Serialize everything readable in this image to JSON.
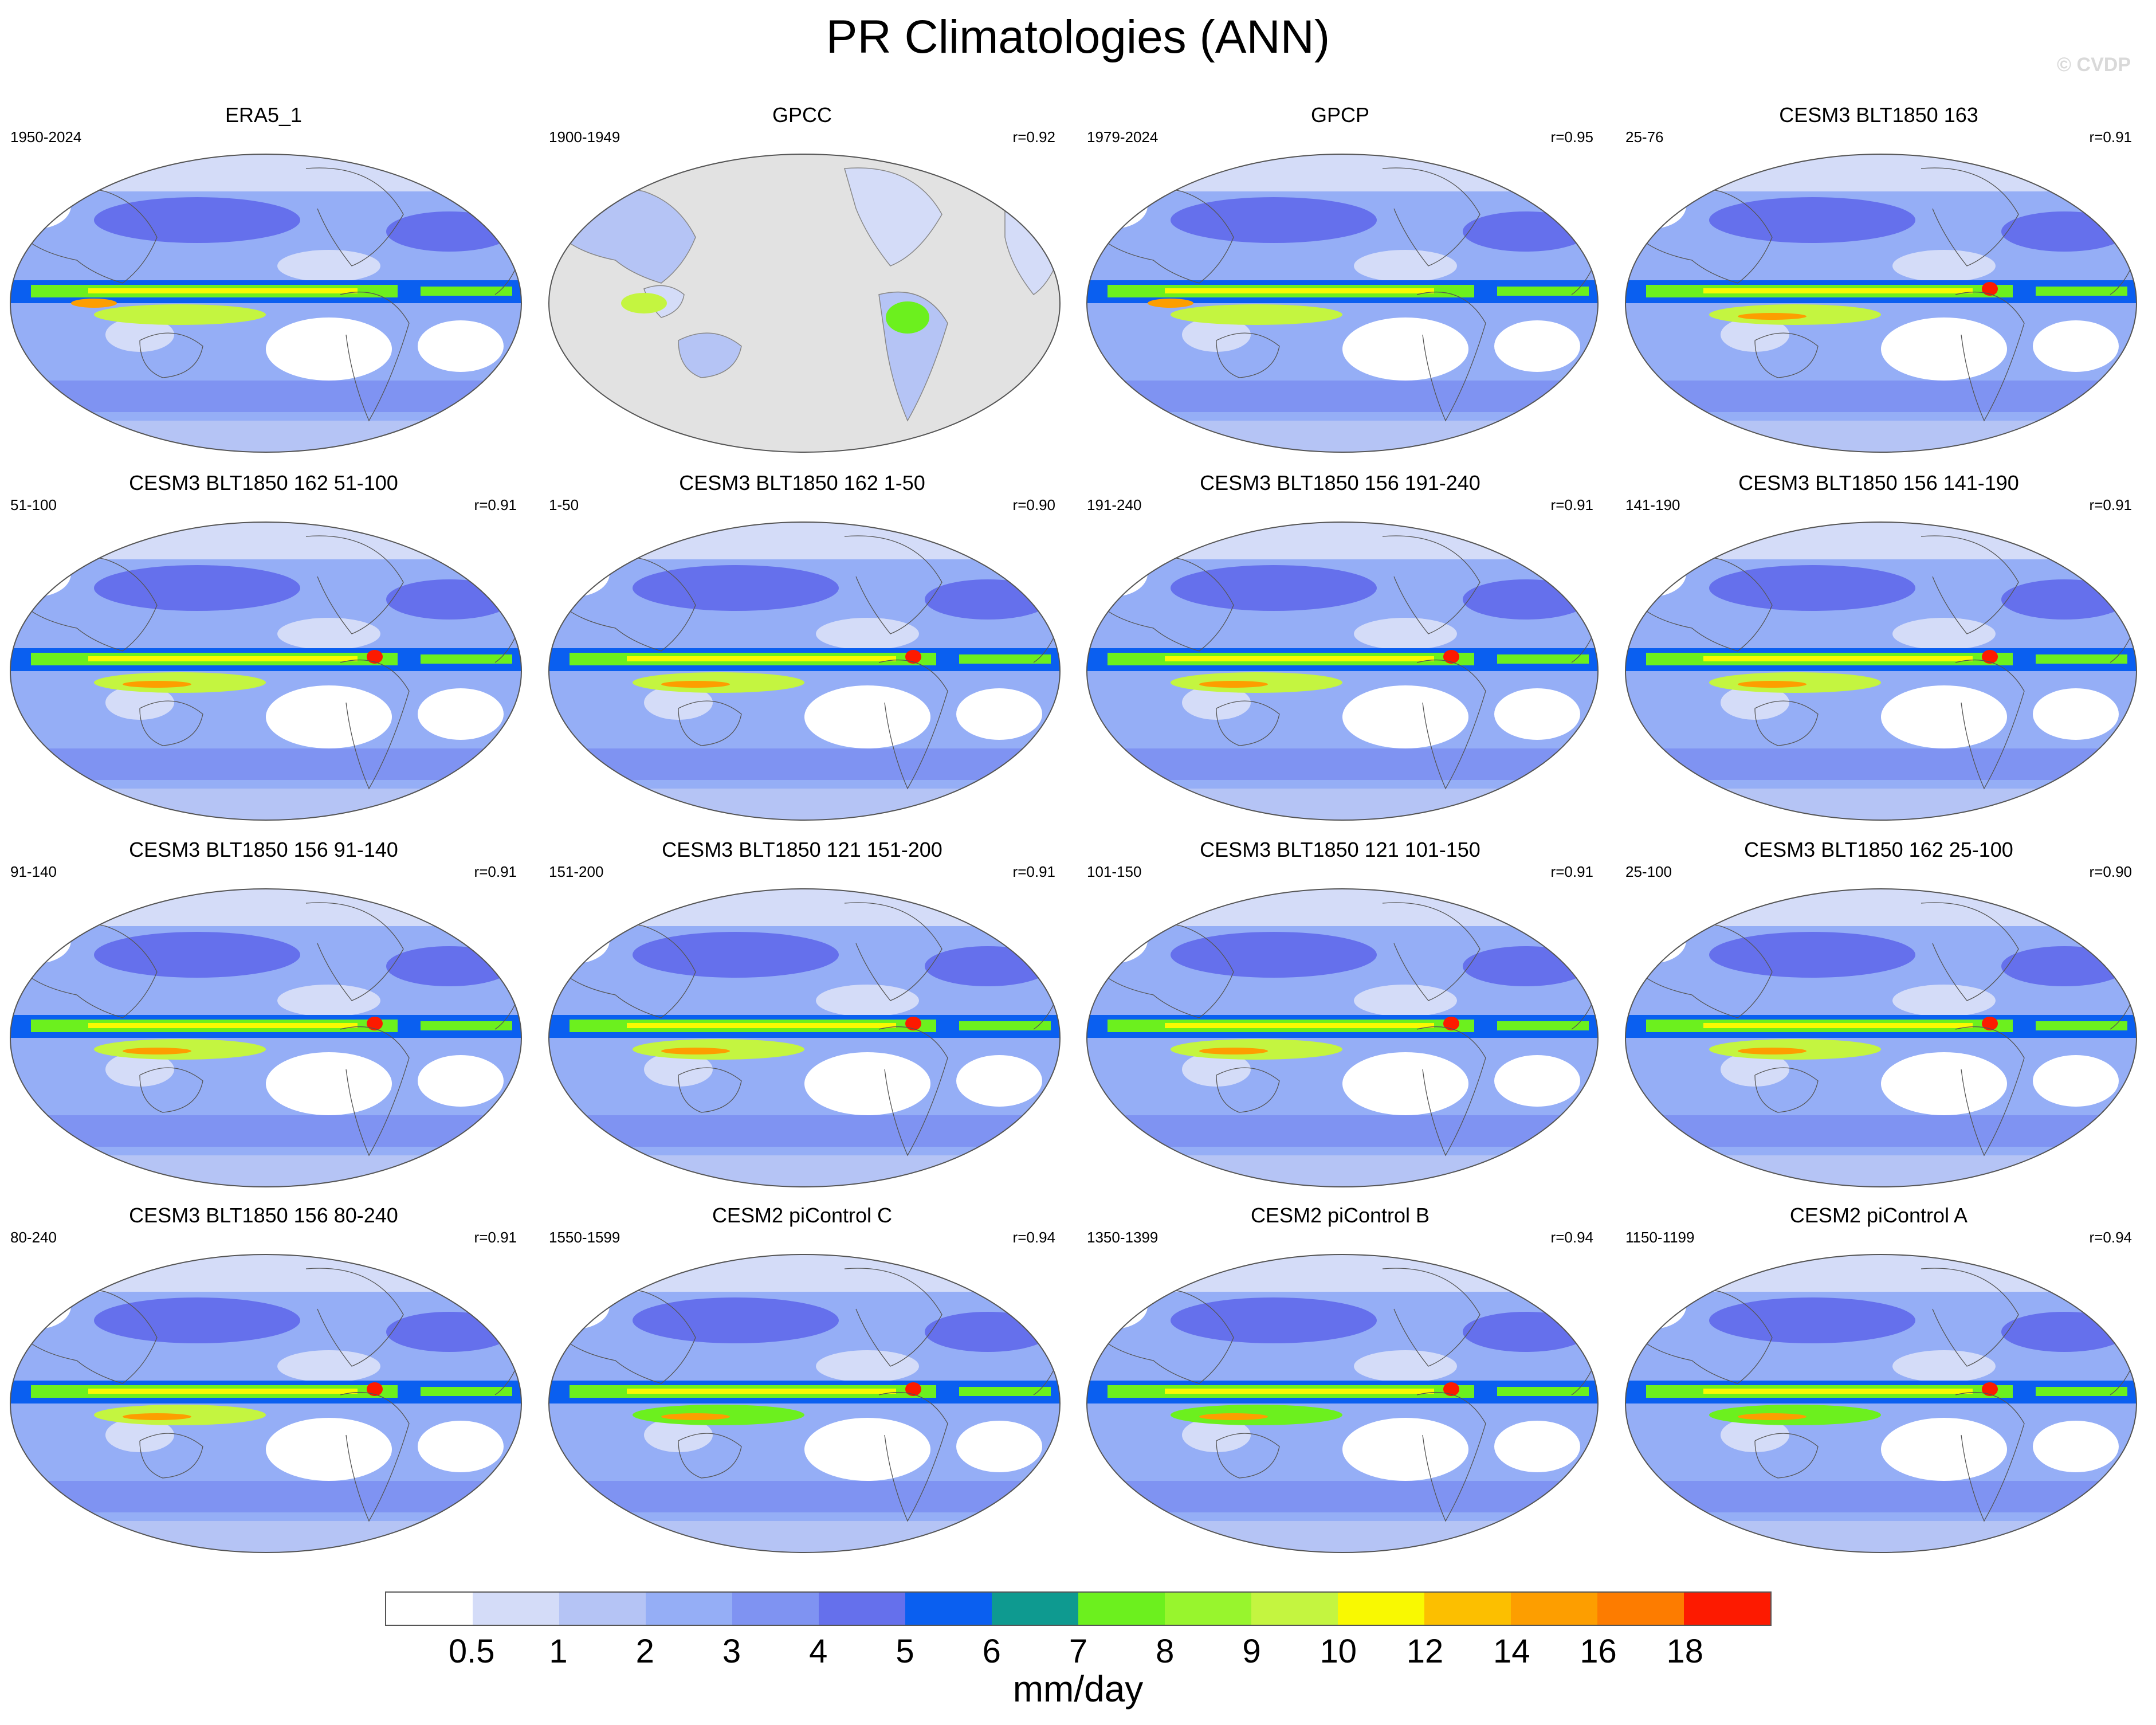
{
  "title": "PR Climatologies (ANN)",
  "watermark": "© CVDP",
  "panels": [
    {
      "title": "ERA5_1",
      "period": "1950-2024",
      "r": "",
      "kind": "obs"
    },
    {
      "title": "GPCC",
      "period": "1900-1949",
      "r": "r=0.92",
      "kind": "land"
    },
    {
      "title": "GPCP",
      "period": "1979-2024",
      "r": "r=0.95",
      "kind": "obs"
    },
    {
      "title": "CESM3 BLT1850 163",
      "period": "25-76",
      "r": "r=0.91",
      "kind": "cesm3"
    },
    {
      "title": "CESM3 BLT1850 162 51-100",
      "period": "51-100",
      "r": "r=0.91",
      "kind": "cesm3"
    },
    {
      "title": "CESM3 BLT1850 162 1-50",
      "period": "1-50",
      "r": "r=0.90",
      "kind": "cesm3"
    },
    {
      "title": "CESM3 BLT1850 156 191-240",
      "period": "191-240",
      "r": "r=0.91",
      "kind": "cesm3"
    },
    {
      "title": "CESM3 BLT1850 156 141-190",
      "period": "141-190",
      "r": "r=0.91",
      "kind": "cesm3"
    },
    {
      "title": "CESM3 BLT1850 156 91-140",
      "period": "91-140",
      "r": "r=0.91",
      "kind": "cesm3"
    },
    {
      "title": "CESM3 BLT1850 121 151-200",
      "period": "151-200",
      "r": "r=0.91",
      "kind": "cesm3"
    },
    {
      "title": "CESM3 BLT1850 121 101-150",
      "period": "101-150",
      "r": "r=0.91",
      "kind": "cesm3"
    },
    {
      "title": "CESM3 BLT1850 162 25-100",
      "period": "25-100",
      "r": "r=0.90",
      "kind": "cesm3"
    },
    {
      "title": "CESM3 BLT1850 156 80-240",
      "period": "80-240",
      "r": "r=0.91",
      "kind": "cesm3"
    },
    {
      "title": "CESM2 piControl C",
      "period": "1550-1599",
      "r": "r=0.94",
      "kind": "cesm2"
    },
    {
      "title": "CESM2 piControl B",
      "period": "1350-1399",
      "r": "r=0.94",
      "kind": "cesm2"
    },
    {
      "title": "CESM2 piControl A",
      "period": "1150-1199",
      "r": "r=0.94",
      "kind": "cesm2"
    }
  ],
  "colorbar": {
    "colors": [
      "#ffffff",
      "#d4dcf8",
      "#b5c4f5",
      "#95aef6",
      "#7f93f2",
      "#6570ec",
      "#0a5ff0",
      "#0e9a90",
      "#6cf01e",
      "#98f52d",
      "#c4f540",
      "#f9f901",
      "#fcbf00",
      "#fd9e00",
      "#fd7c00",
      "#fd1a00"
    ],
    "ticks": [
      "0.5",
      "1",
      "2",
      "3",
      "4",
      "5",
      "6",
      "7",
      "8",
      "9",
      "10",
      "12",
      "14",
      "16",
      "18"
    ],
    "units": "mm/day"
  },
  "palette": {
    "white": "#ffffff",
    "vlight": "#d4dcf8",
    "light": "#b5c4f5",
    "mid": "#95aef6",
    "medium": "#7f93f2",
    "strong": "#6570ec",
    "deep": "#0a5ff0",
    "green": "#6cf01e",
    "lime": "#c4f540",
    "yellow": "#f9f901",
    "orange": "#fd9e00",
    "red": "#fd1a00",
    "grey": "#e2e2e2",
    "outline": "#888888"
  }
}
